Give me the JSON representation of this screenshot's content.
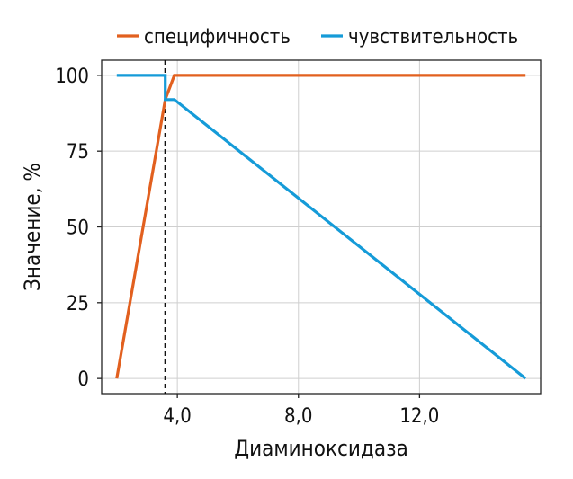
{
  "chart_data": {
    "type": "line",
    "xlabel": "Диаминоксидаза",
    "ylabel": "Значение, %",
    "xlim": [
      1.5,
      16.0
    ],
    "ylim": [
      -5,
      105
    ],
    "grid": true,
    "legend_position": "top",
    "x_ticks": [
      {
        "value": 4.0,
        "label": "4,0"
      },
      {
        "value": 8.0,
        "label": "8,0"
      },
      {
        "value": 12.0,
        "label": "12,0"
      }
    ],
    "y_ticks": [
      {
        "value": 0,
        "label": "0"
      },
      {
        "value": 25,
        "label": "25"
      },
      {
        "value": 50,
        "label": "50"
      },
      {
        "value": 75,
        "label": "75"
      },
      {
        "value": 100,
        "label": "100"
      }
    ],
    "threshold_x": 3.6,
    "series": [
      {
        "name": "специфичность",
        "color": "#e2601f",
        "points": [
          [
            2.0,
            0
          ],
          [
            3.6,
            92
          ],
          [
            3.9,
            100
          ],
          [
            15.5,
            100
          ]
        ]
      },
      {
        "name": "чувствительность",
        "color": "#159bd8",
        "points": [
          [
            2.0,
            100
          ],
          [
            3.6,
            100
          ],
          [
            3.6,
            92
          ],
          [
            3.9,
            92
          ],
          [
            15.5,
            0
          ]
        ]
      }
    ]
  }
}
